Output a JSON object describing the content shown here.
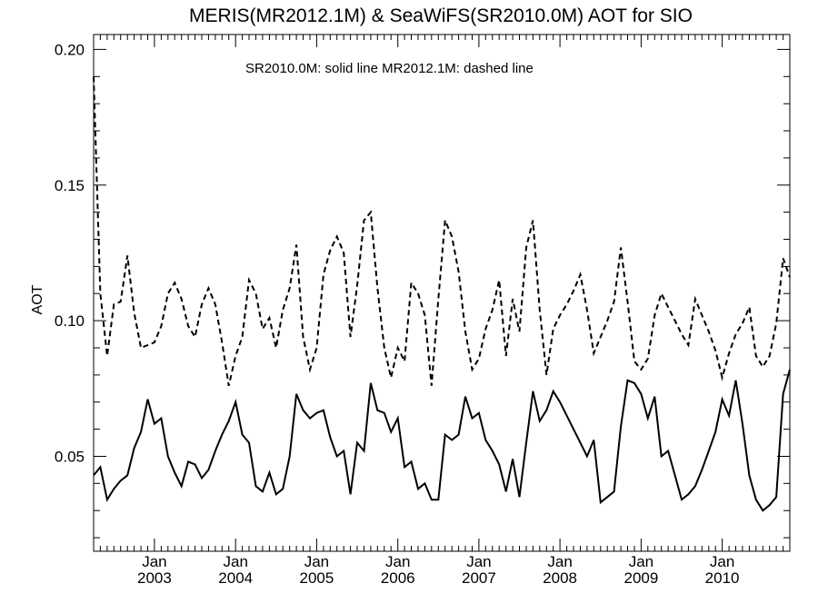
{
  "chart_data": {
    "type": "line",
    "title": "MERIS(MR2012.1M) & SeaWiFS(SR2010.0M)  AOT for SIO",
    "annotation": "SR2010.0M: solid line   MR2012.1M: dashed line",
    "xlabel": "",
    "ylabel": "AOT",
    "xlim": [
      "2002-04",
      "2010-10"
    ],
    "ylim": [
      0.015,
      0.2055
    ],
    "yticks": [
      0.05,
      0.1,
      0.15,
      0.2
    ],
    "ytick_labels": [
      "0.05",
      "0.10",
      "0.15",
      "0.20"
    ],
    "xticks": [
      {
        "date": "2003-01",
        "month": "Jan",
        "year": "2003"
      },
      {
        "date": "2004-01",
        "month": "Jan",
        "year": "2004"
      },
      {
        "date": "2005-01",
        "month": "Jan",
        "year": "2005"
      },
      {
        "date": "2006-01",
        "month": "Jan",
        "year": "2006"
      },
      {
        "date": "2007-01",
        "month": "Jan",
        "year": "2007"
      },
      {
        "date": "2008-01",
        "month": "Jan",
        "year": "2008"
      },
      {
        "date": "2009-01",
        "month": "Jan",
        "year": "2009"
      },
      {
        "date": "2010-01",
        "month": "Jan",
        "year": "2010"
      }
    ],
    "grid": false,
    "series": [
      {
        "name": "SR2010.0M",
        "style": "solid",
        "color": "#000000",
        "points": [
          [
            "2002-04",
            0.043
          ],
          [
            "2002-05",
            0.046
          ],
          [
            "2002-06",
            0.034
          ],
          [
            "2002-07",
            0.038
          ],
          [
            "2002-08",
            0.041
          ],
          [
            "2002-09",
            0.043
          ],
          [
            "2002-10",
            0.053
          ],
          [
            "2002-11",
            0.059
          ],
          [
            "2002-12",
            0.071
          ],
          [
            "2003-01",
            0.062
          ],
          [
            "2003-02",
            0.064
          ],
          [
            "2003-03",
            0.05
          ],
          [
            "2003-04",
            0.044
          ],
          [
            "2003-05",
            0.039
          ],
          [
            "2003-06",
            0.048
          ],
          [
            "2003-07",
            0.047
          ],
          [
            "2003-08",
            0.042
          ],
          [
            "2003-09",
            0.045
          ],
          [
            "2003-10",
            0.052
          ],
          [
            "2003-11",
            0.058
          ],
          [
            "2003-12",
            0.063
          ],
          [
            "2004-01",
            0.07
          ],
          [
            "2004-02",
            0.058
          ],
          [
            "2004-03",
            0.055
          ],
          [
            "2004-04",
            0.039
          ],
          [
            "2004-05",
            0.037
          ],
          [
            "2004-06",
            0.044
          ],
          [
            "2004-07",
            0.036
          ],
          [
            "2004-08",
            0.038
          ],
          [
            "2004-09",
            0.05
          ],
          [
            "2004-10",
            0.073
          ],
          [
            "2004-11",
            0.067
          ],
          [
            "2004-12",
            0.064
          ],
          [
            "2005-01",
            0.066
          ],
          [
            "2005-02",
            0.067
          ],
          [
            "2005-03",
            0.057
          ],
          [
            "2005-04",
            0.05
          ],
          [
            "2005-05",
            0.052
          ],
          [
            "2005-06",
            0.036
          ],
          [
            "2005-07",
            0.055
          ],
          [
            "2005-08",
            0.052
          ],
          [
            "2005-09",
            0.077
          ],
          [
            "2005-10",
            0.067
          ],
          [
            "2005-11",
            0.066
          ],
          [
            "2005-12",
            0.059
          ],
          [
            "2006-01",
            0.064
          ],
          [
            "2006-02",
            0.046
          ],
          [
            "2006-03",
            0.048
          ],
          [
            "2006-04",
            0.038
          ],
          [
            "2006-05",
            0.04
          ],
          [
            "2006-06",
            0.034
          ],
          [
            "2006-07",
            0.034
          ],
          [
            "2006-08",
            0.058
          ],
          [
            "2006-09",
            0.056
          ],
          [
            "2006-10",
            0.058
          ],
          [
            "2006-11",
            0.072
          ],
          [
            "2006-12",
            0.064
          ],
          [
            "2007-01",
            0.066
          ],
          [
            "2007-02",
            0.056
          ],
          [
            "2007-03",
            0.052
          ],
          [
            "2007-04",
            0.047
          ],
          [
            "2007-05",
            0.037
          ],
          [
            "2007-06",
            0.049
          ],
          [
            "2007-07",
            0.035
          ],
          [
            "2007-08",
            0.055
          ],
          [
            "2007-09",
            0.074
          ],
          [
            "2007-10",
            0.063
          ],
          [
            "2007-11",
            0.067
          ],
          [
            "2007-12",
            0.074
          ],
          [
            "2008-01",
            0.07
          ],
          [
            "2008-02",
            0.065
          ],
          [
            "2008-03",
            0.06
          ],
          [
            "2008-04",
            0.055
          ],
          [
            "2008-05",
            0.05
          ],
          [
            "2008-06",
            0.056
          ],
          [
            "2008-07",
            0.033
          ],
          [
            "2008-08",
            0.035
          ],
          [
            "2008-09",
            0.037
          ],
          [
            "2008-10",
            0.061
          ],
          [
            "2008-11",
            0.078
          ],
          [
            "2008-12",
            0.077
          ],
          [
            "2009-01",
            0.073
          ],
          [
            "2009-02",
            0.064
          ],
          [
            "2009-03",
            0.072
          ],
          [
            "2009-04",
            0.05
          ],
          [
            "2009-05",
            0.052
          ],
          [
            "2009-06",
            0.043
          ],
          [
            "2009-07",
            0.034
          ],
          [
            "2009-08",
            0.036
          ],
          [
            "2009-09",
            0.039
          ],
          [
            "2009-10",
            0.045
          ],
          [
            "2009-11",
            0.052
          ],
          [
            "2009-12",
            0.059
          ],
          [
            "2010-01",
            0.071
          ],
          [
            "2010-02",
            0.065
          ],
          [
            "2010-03",
            0.078
          ],
          [
            "2010-04",
            0.062
          ],
          [
            "2010-05",
            0.043
          ],
          [
            "2010-06",
            0.034
          ],
          [
            "2010-07",
            0.03
          ],
          [
            "2010-08",
            0.032
          ],
          [
            "2010-09",
            0.035
          ],
          [
            "2010-10",
            0.073
          ],
          [
            "2010-11",
            0.082
          ]
        ]
      },
      {
        "name": "MR2012.1M",
        "style": "dashed",
        "color": "#000000",
        "points": [
          [
            "2002-04",
            0.19
          ],
          [
            "2002-05",
            0.11
          ],
          [
            "2002-06",
            0.087
          ],
          [
            "2002-07",
            0.106
          ],
          [
            "2002-08",
            0.107
          ],
          [
            "2002-09",
            0.124
          ],
          [
            "2002-10",
            0.103
          ],
          [
            "2002-11",
            0.09
          ],
          [
            "2002-12",
            0.091
          ],
          [
            "2003-01",
            0.092
          ],
          [
            "2003-02",
            0.098
          ],
          [
            "2003-03",
            0.11
          ],
          [
            "2003-04",
            0.114
          ],
          [
            "2003-05",
            0.108
          ],
          [
            "2003-06",
            0.098
          ],
          [
            "2003-07",
            0.094
          ],
          [
            "2003-08",
            0.106
          ],
          [
            "2003-09",
            0.112
          ],
          [
            "2003-10",
            0.106
          ],
          [
            "2003-11",
            0.092
          ],
          [
            "2003-12",
            0.076
          ],
          [
            "2004-01",
            0.087
          ],
          [
            "2004-02",
            0.094
          ],
          [
            "2004-03",
            0.115
          ],
          [
            "2004-04",
            0.11
          ],
          [
            "2004-05",
            0.097
          ],
          [
            "2004-06",
            0.101
          ],
          [
            "2004-07",
            0.09
          ],
          [
            "2004-08",
            0.104
          ],
          [
            "2004-09",
            0.112
          ],
          [
            "2004-10",
            0.128
          ],
          [
            "2004-11",
            0.094
          ],
          [
            "2004-12",
            0.082
          ],
          [
            "2005-01",
            0.09
          ],
          [
            "2005-02",
            0.117
          ],
          [
            "2005-03",
            0.126
          ],
          [
            "2005-04",
            0.131
          ],
          [
            "2005-05",
            0.125
          ],
          [
            "2005-06",
            0.094
          ],
          [
            "2005-07",
            0.113
          ],
          [
            "2005-08",
            0.137
          ],
          [
            "2005-09",
            0.14
          ],
          [
            "2005-10",
            0.112
          ],
          [
            "2005-11",
            0.09
          ],
          [
            "2005-12",
            0.079
          ],
          [
            "2006-01",
            0.09
          ],
          [
            "2006-02",
            0.085
          ],
          [
            "2006-03",
            0.114
          ],
          [
            "2006-04",
            0.11
          ],
          [
            "2006-05",
            0.102
          ],
          [
            "2006-06",
            0.076
          ],
          [
            "2006-07",
            0.108
          ],
          [
            "2006-08",
            0.137
          ],
          [
            "2006-09",
            0.131
          ],
          [
            "2006-10",
            0.118
          ],
          [
            "2006-11",
            0.096
          ],
          [
            "2006-12",
            0.082
          ],
          [
            "2007-01",
            0.086
          ],
          [
            "2007-02",
            0.097
          ],
          [
            "2007-03",
            0.104
          ],
          [
            "2007-04",
            0.115
          ],
          [
            "2007-05",
            0.087
          ],
          [
            "2007-06",
            0.108
          ],
          [
            "2007-07",
            0.096
          ],
          [
            "2007-08",
            0.127
          ],
          [
            "2007-09",
            0.137
          ],
          [
            "2007-10",
            0.104
          ],
          [
            "2007-11",
            0.08
          ],
          [
            "2007-12",
            0.097
          ],
          [
            "2008-01",
            0.102
          ],
          [
            "2008-02",
            0.106
          ],
          [
            "2008-03",
            0.111
          ],
          [
            "2008-04",
            0.117
          ],
          [
            "2008-05",
            0.104
          ],
          [
            "2008-06",
            0.088
          ],
          [
            "2008-07",
            0.094
          ],
          [
            "2008-08",
            0.1
          ],
          [
            "2008-09",
            0.107
          ],
          [
            "2008-10",
            0.127
          ],
          [
            "2008-11",
            0.107
          ],
          [
            "2008-12",
            0.085
          ],
          [
            "2009-01",
            0.082
          ],
          [
            "2009-02",
            0.086
          ],
          [
            "2009-03",
            0.102
          ],
          [
            "2009-04",
            0.11
          ],
          [
            "2009-05",
            0.105
          ],
          [
            "2009-06",
            0.1
          ],
          [
            "2009-07",
            0.095
          ],
          [
            "2009-08",
            0.091
          ],
          [
            "2009-09",
            0.108
          ],
          [
            "2009-10",
            0.102
          ],
          [
            "2009-11",
            0.096
          ],
          [
            "2009-12",
            0.089
          ],
          [
            "2010-01",
            0.079
          ],
          [
            "2010-02",
            0.088
          ],
          [
            "2010-03",
            0.095
          ],
          [
            "2010-04",
            0.099
          ],
          [
            "2010-05",
            0.105
          ],
          [
            "2010-06",
            0.087
          ],
          [
            "2010-07",
            0.083
          ],
          [
            "2010-08",
            0.087
          ],
          [
            "2010-09",
            0.099
          ],
          [
            "2010-10",
            0.123
          ],
          [
            "2010-11",
            0.116
          ]
        ]
      }
    ]
  }
}
